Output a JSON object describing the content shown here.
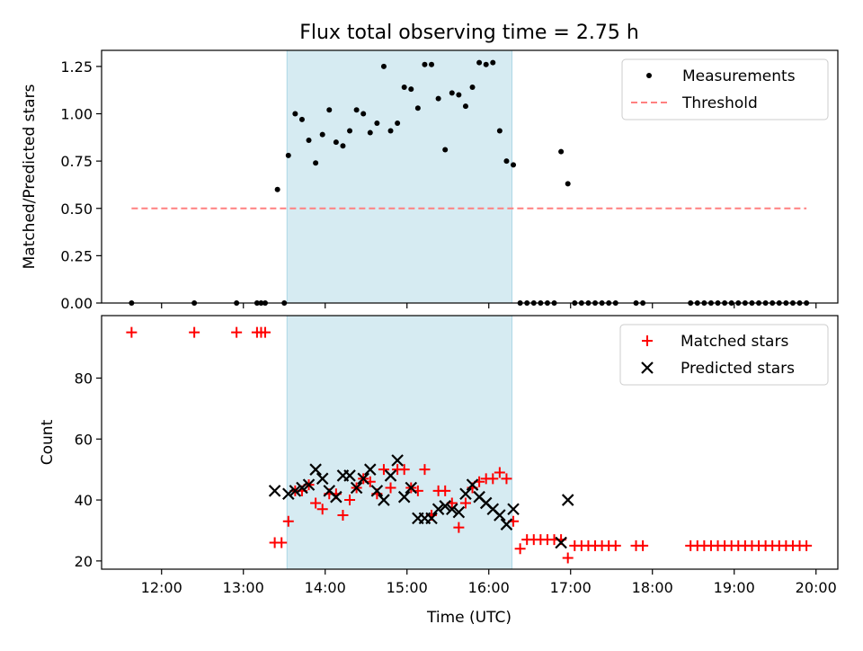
{
  "chart_data": [
    {
      "type": "scatter",
      "title": "Flux total observing time = 2.75 h",
      "xlabel": "",
      "ylabel": "Matched/Predicted stars",
      "xlim": [
        "11:16",
        "20:16"
      ],
      "ylim": [
        0,
        1.335
      ],
      "x_tick_labels": [
        "12:00",
        "13:00",
        "14:00",
        "15:00",
        "16:00",
        "17:00",
        "18:00",
        "19:00",
        "20:00"
      ],
      "y_ticks": [
        0.0,
        0.25,
        0.5,
        0.75,
        1.0,
        1.25
      ],
      "y_tick_labels": [
        "0.00",
        "0.25",
        "0.50",
        "0.75",
        "1.00",
        "1.25"
      ],
      "shaded_span": [
        "13:32",
        "16:17"
      ],
      "legend_position": "top-right",
      "series": [
        {
          "name": "Measurements",
          "color": "#000000",
          "marker": "dot",
          "x": [
            "11:38",
            "12:24",
            "12:55",
            "13:10",
            "13:13",
            "13:16",
            "13:25",
            "13:30",
            "13:33",
            "13:38",
            "13:43",
            "13:48",
            "13:53",
            "13:58",
            "14:03",
            "14:08",
            "14:13",
            "14:18",
            "14:23",
            "14:28",
            "14:33",
            "14:38",
            "14:43",
            "14:48",
            "14:53",
            "14:58",
            "15:03",
            "15:08",
            "15:13",
            "15:18",
            "15:23",
            "15:28",
            "15:33",
            "15:38",
            "15:43",
            "15:48",
            "15:53",
            "15:58",
            "16:03",
            "16:08",
            "16:13",
            "16:18",
            "16:23",
            "16:28",
            "16:33",
            "16:38",
            "16:43",
            "16:48",
            "16:53",
            "16:58",
            "17:03",
            "17:08",
            "17:13",
            "17:18",
            "17:23",
            "17:28",
            "17:33",
            "17:48",
            "17:53",
            "18:28",
            "18:33",
            "18:38",
            "18:43",
            "18:48",
            "18:53",
            "18:58",
            "19:03",
            "19:08",
            "19:13",
            "19:18",
            "19:23",
            "19:28",
            "19:33",
            "19:38",
            "19:43",
            "19:48",
            "19:53"
          ],
          "y": [
            0,
            0,
            0,
            0,
            0,
            0,
            0.6,
            0,
            0.78,
            1.0,
            0.97,
            0.86,
            0.74,
            0.89,
            1.02,
            0.85,
            0.83,
            0.91,
            1.02,
            1.0,
            0.9,
            0.95,
            1.25,
            0.91,
            0.95,
            1.14,
            1.13,
            1.03,
            1.26,
            1.26,
            1.08,
            0.81,
            1.11,
            1.1,
            1.04,
            1.14,
            1.27,
            1.26,
            1.27,
            0.91,
            0.75,
            0.73,
            0,
            0,
            0,
            0,
            0,
            0,
            0.8,
            0.63,
            0,
            0,
            0,
            0,
            0,
            0,
            0,
            0,
            0,
            0,
            0,
            0,
            0,
            0,
            0,
            0,
            0,
            0,
            0,
            0,
            0,
            0,
            0,
            0,
            0,
            0,
            0
          ]
        },
        {
          "name": "Threshold",
          "color": "#ff8080",
          "style": "dashed",
          "x": [
            "11:38",
            "19:53"
          ],
          "y": [
            0.5,
            0.5
          ]
        }
      ]
    },
    {
      "type": "scatter",
      "title": "",
      "xlabel": "Time (UTC)",
      "ylabel": "Count",
      "xlim": [
        "11:16",
        "20:16"
      ],
      "ylim": [
        17.3,
        100.5
      ],
      "x_tick_labels": [
        "12:00",
        "13:00",
        "14:00",
        "15:00",
        "16:00",
        "17:00",
        "18:00",
        "19:00",
        "20:00"
      ],
      "y_ticks": [
        20,
        40,
        60,
        80
      ],
      "y_tick_labels": [
        "20",
        "40",
        "60",
        "80"
      ],
      "shaded_span": [
        "13:32",
        "16:17"
      ],
      "legend_position": "top-right",
      "series": [
        {
          "name": "Matched stars",
          "color": "#ff0000",
          "marker": "plus",
          "x": [
            "11:38",
            "12:24",
            "12:55",
            "13:10",
            "13:13",
            "13:16",
            "13:23",
            "13:28",
            "13:33",
            "13:38",
            "13:43",
            "13:48",
            "13:53",
            "13:58",
            "14:03",
            "14:08",
            "14:13",
            "14:18",
            "14:23",
            "14:28",
            "14:33",
            "14:38",
            "14:43",
            "14:48",
            "14:53",
            "14:58",
            "15:03",
            "15:08",
            "15:13",
            "15:18",
            "15:23",
            "15:28",
            "15:33",
            "15:38",
            "15:43",
            "15:48",
            "15:53",
            "15:58",
            "16:03",
            "16:08",
            "16:13",
            "16:18",
            "16:23",
            "16:28",
            "16:33",
            "16:38",
            "16:43",
            "16:48",
            "16:53",
            "16:58",
            "17:03",
            "17:08",
            "17:13",
            "17:18",
            "17:23",
            "17:28",
            "17:33",
            "17:48",
            "17:53",
            "18:28",
            "18:33",
            "18:38",
            "18:43",
            "18:48",
            "18:53",
            "18:58",
            "19:03",
            "19:08",
            "19:13",
            "19:18",
            "19:23",
            "19:28",
            "19:33",
            "19:38",
            "19:43",
            "19:48",
            "19:53"
          ],
          "y": [
            95,
            95,
            95,
            95,
            95,
            95,
            26,
            26,
            33,
            43,
            43,
            45,
            39,
            37,
            42,
            42,
            35,
            40,
            44,
            47,
            46,
            42,
            50,
            44,
            50,
            50,
            44,
            43,
            50,
            35,
            43,
            43,
            39,
            31,
            39,
            44,
            46,
            47,
            47,
            49,
            47,
            33,
            24,
            27,
            27,
            27,
            27,
            27,
            27,
            21,
            25,
            25,
            25,
            25,
            25,
            25,
            25,
            25,
            25,
            25,
            25,
            25,
            25,
            25,
            25,
            25,
            25,
            25,
            25,
            25,
            25,
            25,
            25,
            25,
            25,
            25,
            25
          ]
        },
        {
          "name": "Predicted stars",
          "color": "#000000",
          "marker": "x",
          "x": [
            "13:23",
            "13:33",
            "13:38",
            "13:43",
            "13:48",
            "13:53",
            "13:58",
            "14:03",
            "14:08",
            "14:13",
            "14:18",
            "14:23",
            "14:28",
            "14:33",
            "14:38",
            "14:43",
            "14:48",
            "14:53",
            "14:58",
            "15:03",
            "15:08",
            "15:13",
            "15:18",
            "15:23",
            "15:28",
            "15:33",
            "15:38",
            "15:43",
            "15:48",
            "15:53",
            "15:58",
            "16:03",
            "16:08",
            "16:13",
            "16:18",
            "16:53",
            "16:58"
          ],
          "y": [
            43,
            42,
            43,
            44,
            45,
            50,
            47,
            43,
            41,
            48,
            48,
            44,
            47,
            50,
            43,
            40,
            48,
            53,
            41,
            44,
            34,
            34,
            34,
            37,
            38,
            37,
            36,
            42,
            45,
            41,
            39,
            37,
            35,
            32,
            37,
            26,
            40
          ]
        }
      ]
    }
  ]
}
